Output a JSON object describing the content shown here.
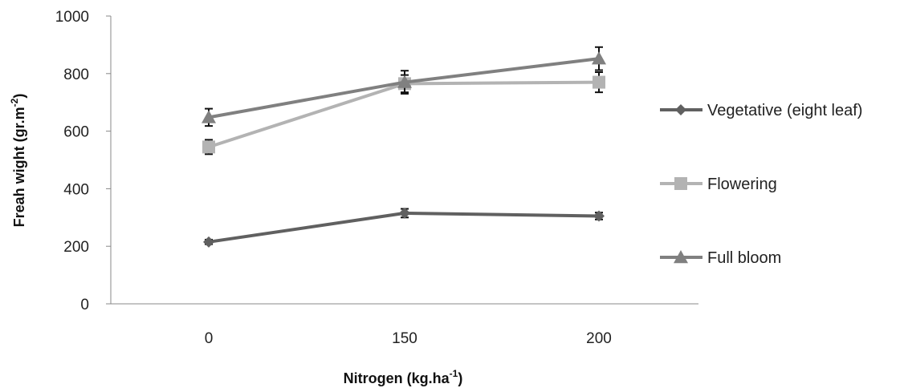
{
  "chart_data": {
    "type": "line",
    "categories": [
      "0",
      "150",
      "200"
    ],
    "xlabel": "Nitrogen (kg.ha",
    "xlabel_sup": "-1",
    "xlabel_end": ")",
    "ylabel": "Freah wight (gr.m",
    "ylabel_sup": "-2",
    "ylabel_end": ")",
    "ylim": [
      0,
      1000
    ],
    "yticks": [
      "0",
      "200",
      "400",
      "600",
      "800",
      "1000"
    ],
    "grid": false,
    "legend_position": "right",
    "series": [
      {
        "name": "Vegetative (eight leaf)",
        "values": [
          215,
          315,
          305
        ],
        "errors": [
          8,
          15,
          12
        ],
        "color": "#606060",
        "marker": "diamond"
      },
      {
        "name": "Flowering",
        "values": [
          545,
          765,
          770
        ],
        "errors": [
          25,
          30,
          35
        ],
        "color": "#b3b3b3",
        "marker": "square"
      },
      {
        "name": "Full bloom",
        "values": [
          648,
          770,
          852
        ],
        "errors": [
          30,
          40,
          40
        ],
        "color": "#808080",
        "marker": "triangle"
      }
    ]
  }
}
